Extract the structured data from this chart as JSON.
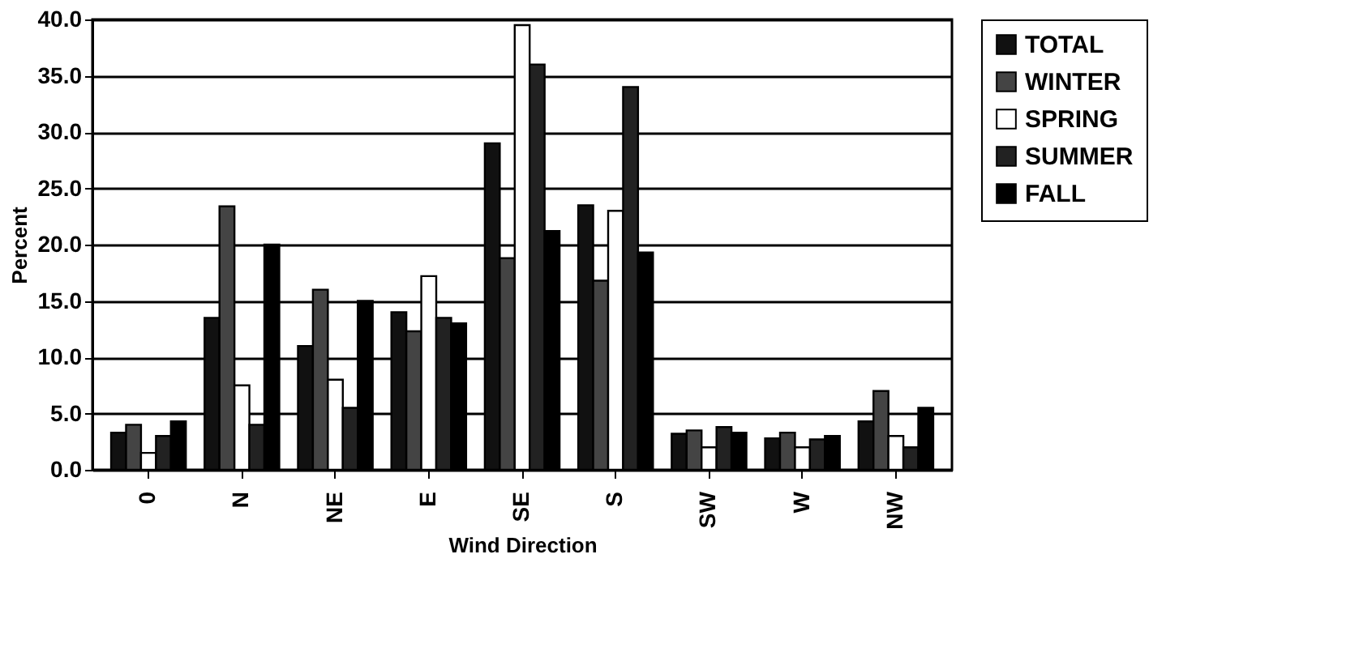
{
  "chart_data": {
    "type": "bar",
    "xlabel": "Wind Direction",
    "ylabel": "Percent",
    "categories": [
      "0",
      "N",
      "NE",
      "E",
      "SE",
      "S",
      "SW",
      "W",
      "NW"
    ],
    "series": [
      {
        "name": "TOTAL",
        "color": "#111111",
        "values": [
          3.3,
          13.5,
          11.0,
          14.0,
          29.0,
          23.5,
          3.2,
          2.8,
          4.3
        ]
      },
      {
        "name": "WINTER",
        "color": "#444444",
        "values": [
          4.0,
          23.4,
          16.0,
          12.3,
          18.8,
          16.8,
          3.5,
          3.3,
          7.0
        ]
      },
      {
        "name": "SPRING",
        "color": "#ffffff",
        "values": [
          1.5,
          7.5,
          8.0,
          17.2,
          39.5,
          23.0,
          2.0,
          2.0,
          3.0
        ]
      },
      {
        "name": "SUMMER",
        "color": "#222222",
        "values": [
          3.0,
          4.0,
          5.5,
          13.5,
          36.0,
          34.0,
          3.8,
          2.7,
          2.0
        ]
      },
      {
        "name": "FALL",
        "color": "#000000",
        "values": [
          4.3,
          20.0,
          15.0,
          13.0,
          21.2,
          19.3,
          3.3,
          3.0,
          5.5
        ]
      }
    ],
    "ylim": [
      0,
      40
    ],
    "yticks": [
      {
        "value": 0,
        "label": "0.0"
      },
      {
        "value": 5,
        "label": "5.0"
      },
      {
        "value": 10,
        "label": "10.0"
      },
      {
        "value": 15,
        "label": "15.0"
      },
      {
        "value": 20,
        "label": "20.0"
      },
      {
        "value": 25,
        "label": "25.0"
      },
      {
        "value": 30,
        "label": "30.0"
      },
      {
        "value": 35,
        "label": "35.0"
      },
      {
        "value": 40,
        "label": "40.0"
      }
    ],
    "grid": "y",
    "legend": "right"
  }
}
